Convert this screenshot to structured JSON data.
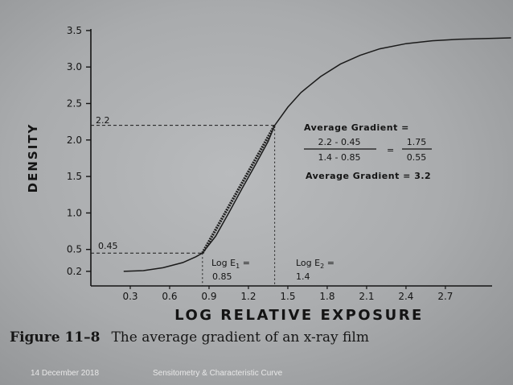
{
  "chart_data": {
    "type": "line",
    "ylabel": "DENSITY",
    "xlabel": "LOG RELATIVE EXPOSURE",
    "x_ticks": [
      "0.3",
      "0.6",
      "0.9",
      "1.2",
      "1.5",
      "1.8",
      "2.1",
      "2.4",
      "2.7"
    ],
    "y_ticks": [
      "0.2",
      "0.5",
      "1.0",
      "1.5",
      "2.0",
      "2.5",
      "3.0",
      "3.5"
    ],
    "xlim": [
      0,
      3.4
    ],
    "ylim": [
      0,
      3.5
    ],
    "grid": false,
    "series": [
      {
        "x": [
          0.25,
          0.4,
          0.55,
          0.7,
          0.8,
          0.85,
          0.95,
          1.05,
          1.15,
          1.25,
          1.35,
          1.4,
          1.5,
          1.6,
          1.75,
          1.9,
          2.05,
          2.2,
          2.4,
          2.6,
          2.8,
          3.0,
          3.2
        ],
        "y": [
          0.2,
          0.21,
          0.25,
          0.32,
          0.4,
          0.45,
          0.68,
          1.0,
          1.33,
          1.65,
          1.98,
          2.2,
          2.45,
          2.65,
          2.87,
          3.04,
          3.16,
          3.25,
          3.32,
          3.36,
          3.38,
          3.39,
          3.4
        ]
      }
    ],
    "gradient_line": {
      "x": [
        0.85,
        1.4
      ],
      "y": [
        0.45,
        2.2
      ]
    },
    "reference_points": [
      {
        "x_value": 0.85,
        "y_value": 0.45
      },
      {
        "x_value": 1.4,
        "y_value": 2.2
      }
    ],
    "annotations": {
      "y_high": "2.2",
      "y_low": "0.45",
      "log_e1_label": "Log E",
      "log_e1_sub": "1",
      "log_e1_eq": " =",
      "log_e1_value": "0.85",
      "log_e2_label": "Log E",
      "log_e2_sub": "2",
      "log_e2_eq": " =",
      "log_e2_value": "1.4",
      "avg_gradient_label": "Average Gradient =",
      "fraction1_num": "2.2 - 0.45",
      "fraction1_den": "1.4 - 0.85",
      "equals": "=",
      "fraction2_num": "1.75",
      "fraction2_den": "0.55",
      "avg_gradient_result": "Average Gradient = 3.2"
    }
  },
  "caption": {
    "figure": "Figure 11–8",
    "text": "The average gradient of an x-ray film"
  },
  "footer": {
    "date": "14 December 2018",
    "title": "Sensitometry & Characteristic Curve"
  }
}
